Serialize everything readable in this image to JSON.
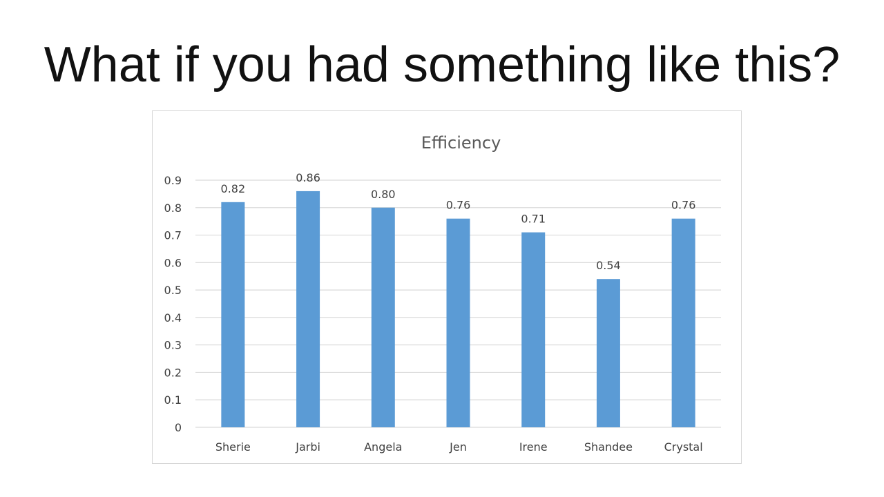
{
  "slide": {
    "title": "What if you had something like this?"
  },
  "chart_data": {
    "type": "bar",
    "title": "Efficiency",
    "categories": [
      "Sherie",
      "Jarbi",
      "Angela",
      "Jen",
      "Irene",
      "Shandee",
      "Crystal"
    ],
    "values": [
      0.82,
      0.86,
      0.8,
      0.76,
      0.71,
      0.54,
      0.76
    ],
    "data_labels": [
      "0.82",
      "0.86",
      "0.80",
      "0.76",
      "0.71",
      "0.54",
      "0.76"
    ],
    "yticks": [
      "0",
      "0.1",
      "0.2",
      "0.3",
      "0.4",
      "0.5",
      "0.6",
      "0.7",
      "0.8",
      "0.9"
    ],
    "ylim": [
      0,
      0.9
    ],
    "grid": true,
    "bar_color": "#5b9bd5",
    "grid_color": "#d9d9d9",
    "text_color": "#404040",
    "title_color": "#595959"
  }
}
